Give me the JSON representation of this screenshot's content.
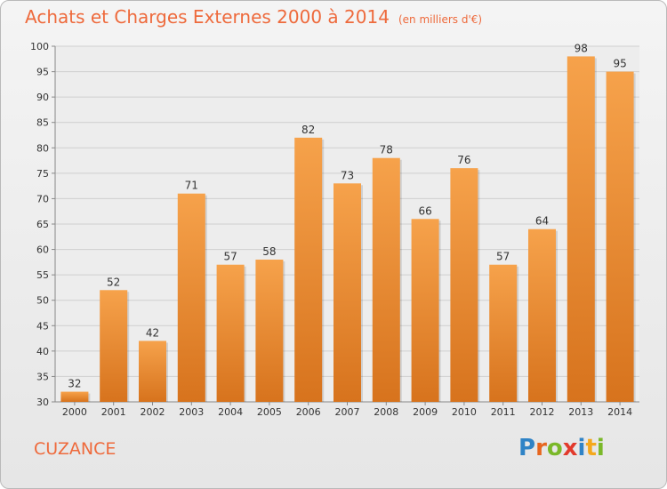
{
  "title": {
    "main": "Achats et Charges Externes 2000 à 2014",
    "sub": "(en milliers d'€)"
  },
  "town": "CUZANCE",
  "logo": {
    "text": "Proxiti",
    "letters": [
      {
        "ch": "P",
        "color": "#2f83c6"
      },
      {
        "ch": "r",
        "color": "#e7661f"
      },
      {
        "ch": "o",
        "color": "#7ab829"
      },
      {
        "ch": "x",
        "color": "#e23a2c"
      },
      {
        "ch": "i",
        "color": "#2f83c6"
      },
      {
        "ch": "t",
        "color": "#f4a81c"
      },
      {
        "ch": "i",
        "color": "#7ab829"
      }
    ]
  },
  "colors": {
    "bar_light": "#f6a24b",
    "bar_dark": "#d7731d",
    "title": "#ee6a3c",
    "grid": "#cfcfcf"
  },
  "chart_data": {
    "type": "bar",
    "categories": [
      "2000",
      "2001",
      "2002",
      "2003",
      "2004",
      "2005",
      "2006",
      "2007",
      "2008",
      "2009",
      "2010",
      "2011",
      "2012",
      "2013",
      "2014"
    ],
    "values": [
      32,
      52,
      42,
      71,
      57,
      58,
      82,
      73,
      78,
      66,
      76,
      57,
      64,
      98,
      95
    ],
    "ylim": [
      30,
      100
    ],
    "yticks": [
      30,
      35,
      40,
      45,
      50,
      55,
      60,
      65,
      70,
      75,
      80,
      85,
      90,
      95,
      100
    ],
    "grid": true,
    "data_labels": true
  }
}
